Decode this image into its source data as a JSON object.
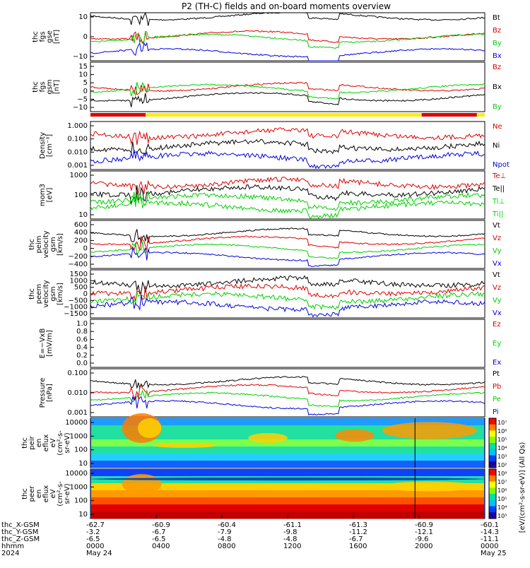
{
  "title": "P2 (TH-C) fields and on-board moments overview",
  "colors": {
    "black": "#000000",
    "red": "#e00000",
    "green": "#00d000",
    "blue": "#0000e0",
    "yellow": "#ffee00"
  },
  "chart_data": [
    {
      "type": "line",
      "id": "fgs_gse",
      "ylabel": [
        "thc",
        "fgs",
        "gse",
        "[nT]"
      ],
      "yticks": [
        "10",
        "0",
        "−10"
      ],
      "ylim": [
        -15,
        15
      ],
      "series": [
        {
          "name": "Bt",
          "color": "black",
          "level": 13
        },
        {
          "name": "Bz",
          "color": "red",
          "level": 1
        },
        {
          "name": "By",
          "color": "green",
          "level": -1
        },
        {
          "name": "Bx",
          "color": "blue",
          "level": -10
        }
      ]
    },
    {
      "type": "line",
      "id": "fgs_gsm",
      "ylabel": [
        "thc",
        "fgs",
        "gsm",
        "[nT]"
      ],
      "yticks": [
        "15",
        "10",
        "5",
        "0",
        "−5",
        "−10"
      ],
      "ylim": [
        -15,
        15
      ],
      "series": [
        {
          "name": "Bz",
          "color": "red",
          "level": 0
        },
        {
          "name": "Bx",
          "color": "black",
          "level": -6
        },
        {
          "name": "By",
          "color": "green",
          "level": -1
        }
      ]
    },
    {
      "type": "bar",
      "id": "mode_bar",
      "segments": [
        {
          "color": "red",
          "from": 0,
          "to": 0.14
        },
        {
          "color": "yellow",
          "from": 0.14,
          "to": 0.84
        },
        {
          "color": "red",
          "from": 0.84,
          "to": 0.98
        },
        {
          "color": "yellow",
          "from": 0.98,
          "to": 1
        }
      ]
    },
    {
      "type": "line",
      "id": "density",
      "ylabel": [
        "Density",
        "[cm⁻³]"
      ],
      "yticks": [
        "1.000",
        "0.100",
        "0.010",
        "0.001"
      ],
      "log": true,
      "series": [
        {
          "name": "Ne",
          "color": "red"
        },
        {
          "name": "Ni",
          "color": "black"
        },
        {
          "name": "Npot",
          "color": "blue"
        }
      ]
    },
    {
      "type": "line",
      "id": "temperature",
      "ylabel": [
        "mom3",
        "[eV]"
      ],
      "yticks": [
        "1000",
        "100",
        "10"
      ],
      "log": true,
      "series": [
        {
          "name": "Te⊥",
          "color": "red"
        },
        {
          "name": "Te||",
          "color": "black"
        },
        {
          "name": "Ti⊥",
          "color": "green"
        },
        {
          "name": "Ti||",
          "color": "green"
        }
      ]
    },
    {
      "type": "line",
      "id": "peim_velocity",
      "ylabel": [
        "thc",
        "peim",
        "velocity",
        "gsm",
        "[km/s]"
      ],
      "yticks": [
        "600",
        "400",
        "200",
        "0",
        "−200",
        "−400"
      ],
      "series": [
        {
          "name": "Vt",
          "color": "black"
        },
        {
          "name": "Vz",
          "color": "red"
        },
        {
          "name": "Vy",
          "color": "green"
        },
        {
          "name": "Vx",
          "color": "blue"
        }
      ]
    },
    {
      "type": "line",
      "id": "peem_velocity",
      "ylabel": [
        "thc",
        "peem",
        "velocity",
        "gsm",
        "[km/s]"
      ],
      "yticks": [
        "1500",
        "1000",
        "500",
        "0",
        "−500",
        "−1000",
        "−1500"
      ],
      "series": [
        {
          "name": "Vt",
          "color": "black"
        },
        {
          "name": "Vz",
          "color": "red"
        },
        {
          "name": "Vy",
          "color": "green"
        },
        {
          "name": "Vx",
          "color": "blue"
        }
      ]
    },
    {
      "type": "line",
      "id": "e_field",
      "ylabel": [
        "E=−VxB",
        "[mV/m]"
      ],
      "yticks": [
        "1.0",
        "0.8",
        "0.6",
        "0.4",
        "0.2",
        "0.0"
      ],
      "series": [
        {
          "name": "Ez",
          "color": "red"
        },
        {
          "name": "Ey",
          "color": "green"
        },
        {
          "name": "Ex",
          "color": "blue"
        }
      ]
    },
    {
      "type": "line",
      "id": "pressure",
      "ylabel": [
        "Pressure",
        "[nPa]"
      ],
      "yticks": [
        "0.100",
        "0.010",
        "0.001"
      ],
      "log": true,
      "series": [
        {
          "name": "Pt",
          "color": "black"
        },
        {
          "name": "Pb",
          "color": "red"
        },
        {
          "name": "Pe",
          "color": "green"
        },
        {
          "name": "Pi",
          "color": "blue"
        }
      ]
    },
    {
      "type": "heatmap",
      "id": "peir",
      "ylabel": [
        "thc",
        "peir",
        "en",
        "eflux",
        "eV",
        "(cm²-s-",
        "sr-eV)"
      ],
      "yticks": [
        "10000",
        "1000",
        "100",
        "10"
      ]
    },
    {
      "type": "heatmap",
      "id": "peer",
      "ylabel": [
        "thc",
        "peer",
        "en",
        "eflux",
        "eV",
        "(cm²-s-",
        "sr-eV)"
      ],
      "yticks": [
        "10000",
        "1000",
        "100",
        "10"
      ]
    }
  ],
  "colorbar": {
    "label": "[eV/(cm²-s-sr-eV)] (All Qs)",
    "ticks_top": [
      "10⁷",
      "10⁶",
      "10⁵",
      "10⁴",
      "10³",
      "10²"
    ],
    "ticks_bottom": [
      "10⁸",
      "10⁷",
      "10⁶",
      "10⁵",
      "10⁴",
      "10³"
    ]
  },
  "xaxis": {
    "row_labels": [
      "thc_X-GSM",
      "thc_Y-GSM",
      "thc_Z-GSM",
      "hhmm",
      "2024"
    ],
    "columns": [
      {
        "x": "-62.7",
        "y": "-3.2",
        "z": "-6.5",
        "hhmm": "0000",
        "date": "May 24"
      },
      {
        "x": "-60.9",
        "y": "-6.7",
        "z": "-6.5",
        "hhmm": "0400",
        "date": ""
      },
      {
        "x": "-60.4",
        "y": "-7.9",
        "z": "-4.8",
        "hhmm": "0800",
        "date": ""
      },
      {
        "x": "-61.1",
        "y": "-9.8",
        "z": "-4.8",
        "hhmm": "1200",
        "date": ""
      },
      {
        "x": "-61.3",
        "y": "-11.2",
        "z": "-6.7",
        "hhmm": "1600",
        "date": ""
      },
      {
        "x": "-60.9",
        "y": "-12.1",
        "z": "-9.6",
        "hhmm": "2000",
        "date": ""
      },
      {
        "x": "-60.1",
        "y": "-14.3",
        "z": "-11.1",
        "hhmm": "0000",
        "date": "May 25"
      }
    ]
  }
}
